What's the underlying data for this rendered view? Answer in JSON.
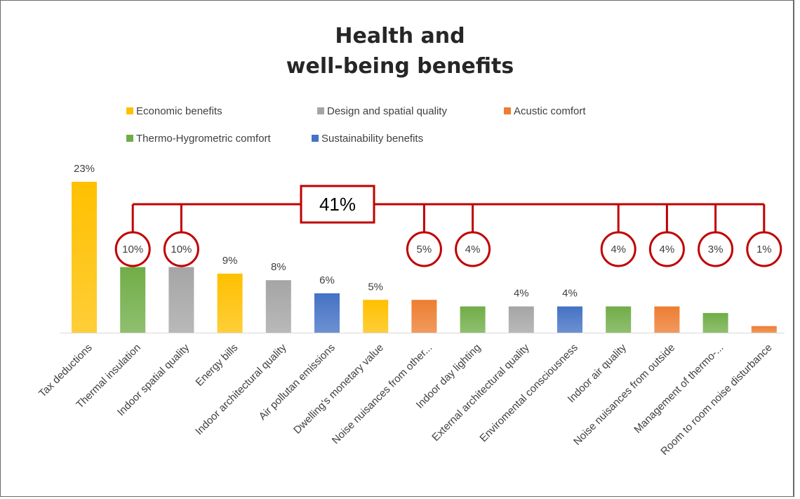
{
  "colors": {
    "economic": "#FFC000",
    "design": "#A5A5A5",
    "acoustic": "#ED7D31",
    "thermo": "#70AD47",
    "sustainability": "#4472C4",
    "highlight": "#C00000"
  },
  "chart_data": {
    "type": "bar",
    "title_lines": [
      "Health and",
      "well-being benefits"
    ],
    "legend": [
      {
        "label": "Economic benefits",
        "color_key": "economic"
      },
      {
        "label": "Design and spatial quality",
        "color_key": "design"
      },
      {
        "label": "Acustic comfort",
        "color_key": "acoustic"
      },
      {
        "label": "Thermo-Hygrometric comfort",
        "color_key": "thermo"
      },
      {
        "label": "Sustainability benefits",
        "color_key": "sustainability"
      }
    ],
    "categories": [
      "Tax deductions",
      "Thermal insulation",
      "Indoor spatial quality",
      "Energy bills",
      "Indoor architectural quality",
      "Air pollutan emissions",
      "Dwelling's monetary value",
      "Noise nuisances from other...",
      "Indoor day lighting",
      "External architectural quality",
      "Enviromental consciousness",
      "Indoor air quality",
      "Noise nuisances from outside",
      "Management of thermo-...",
      "Room to room noise disturbance"
    ],
    "values": [
      23,
      10,
      10,
      9,
      8,
      6,
      5,
      5,
      4,
      4,
      4,
      4,
      4,
      3,
      1
    ],
    "value_labels": [
      "23%",
      "10%",
      "10%",
      "9%",
      "8%",
      "6%",
      "5%",
      "5%",
      "4%",
      "4%",
      "4%",
      "4%",
      "4%",
      "3%",
      "1%"
    ],
    "bar_groups": [
      "economic",
      "thermo",
      "design",
      "economic",
      "design",
      "sustainability",
      "economic",
      "acoustic",
      "thermo",
      "design",
      "sustainability",
      "thermo",
      "acoustic",
      "thermo",
      "acoustic"
    ],
    "highlighted": [
      1,
      2,
      7,
      8,
      11,
      12,
      13,
      14
    ],
    "bracket_label": "41%",
    "ylim": [
      0,
      23
    ]
  }
}
